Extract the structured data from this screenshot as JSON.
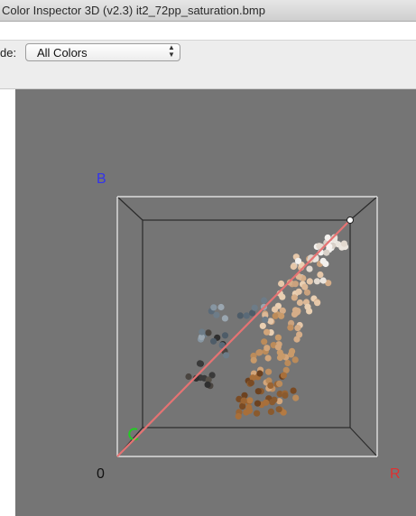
{
  "window": {
    "title": "Color Inspector 3D (v2.3)    it2_72pp_saturation.bmp"
  },
  "toolbar": {
    "mode_label": "de:",
    "mode_select": {
      "selected": "All Colors"
    }
  },
  "viewer": {
    "axes": {
      "origin_label": "0",
      "r_label": "R",
      "g_label": "G",
      "b_label": "B"
    },
    "colors": {
      "background": "#757575",
      "r_axis": "#e03030",
      "g_axis": "#22cc22",
      "b_axis": "#3333ee",
      "gray_diagonal": "#e57373"
    }
  }
}
